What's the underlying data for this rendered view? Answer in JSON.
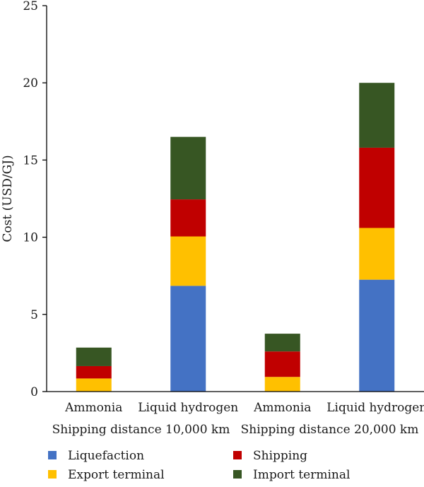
{
  "chart_data": {
    "type": "bar",
    "stacked": true,
    "ylabel": "Cost (USD/GJ)",
    "ylim": [
      0,
      25
    ],
    "yticks": [
      0,
      5,
      10,
      15,
      20,
      25
    ],
    "grid": false,
    "categories": [
      "Ammonia",
      "Liquid hydrogen",
      "Ammonia",
      "Liquid hydrogen"
    ],
    "groups": [
      {
        "label": "Shipping distance 10,000 km",
        "categories": [
          0,
          1
        ]
      },
      {
        "label": "Shipping distance 20,000 km",
        "categories": [
          2,
          3
        ]
      }
    ],
    "series": [
      {
        "name": "Liquefaction",
        "color": "#4472C4",
        "values": [
          0,
          6.85,
          0,
          7.25
        ]
      },
      {
        "name": "Export terminal",
        "color": "#FFC000",
        "values": [
          0.85,
          3.2,
          0.95,
          3.35
        ]
      },
      {
        "name": "Shipping",
        "color": "#C00000",
        "values": [
          0.8,
          2.4,
          1.65,
          5.2
        ]
      },
      {
        "name": "Import terminal",
        "color": "#375623",
        "values": [
          1.2,
          4.05,
          1.15,
          4.2
        ]
      }
    ],
    "legend": {
      "position": "bottom",
      "order": [
        "Liquefaction",
        "Shipping",
        "Export terminal",
        "Import terminal"
      ]
    }
  }
}
